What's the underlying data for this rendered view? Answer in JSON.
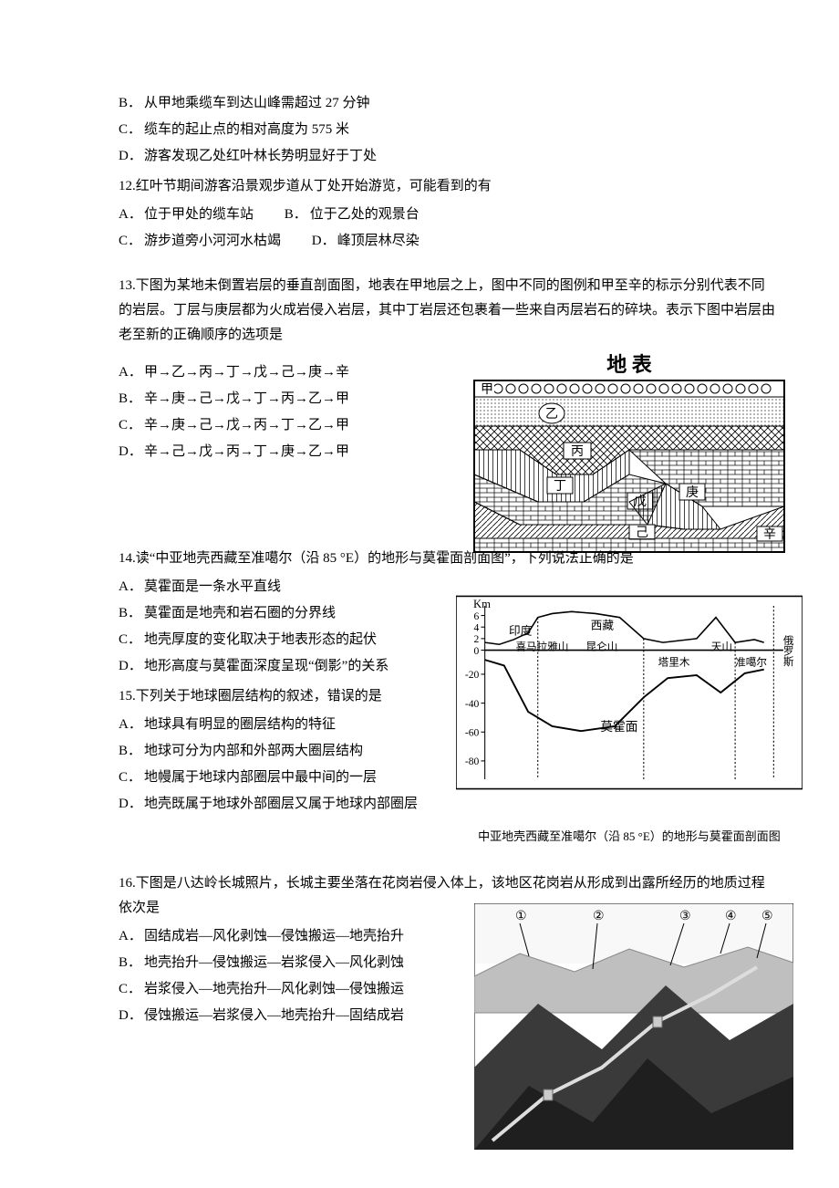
{
  "q11": {
    "B": "从甲地乘缆车到达山峰需超过 27 分钟",
    "C": "缆车的起止点的相对高度为 575 米",
    "D": "游客发现乙处红叶林长势明显好于丁处"
  },
  "q12": {
    "stem": "12.红叶节期间游客沿景观步道从丁处开始游览，可能看到的有",
    "A": "位于甲处的缆车站",
    "B": "位于乙处的观景台",
    "C": "游步道旁小河河水枯竭",
    "D": "峰顶层林尽染"
  },
  "q13": {
    "stem": "13.下图为某地未倒置岩层的垂直剖面图，地表在甲地层之上，图中不同的图例和甲至辛的标示分别代表不同的岩层。丁层与庚层都为火成岩侵入岩层，其中丁岩层还包裹着一些来自丙层岩石的碎块。表示下图中岩层由老至新的正确顺序的选项是",
    "A": "甲→乙→丙→丁→戊→己→庚→辛",
    "B": "辛→庚→己→戊→丁→丙→乙→甲",
    "C": "辛→庚→己→戊→丙→丁→乙→甲",
    "D": "辛→己→戊→丙→丁→庚→乙→甲",
    "fig": {
      "title": "地 表",
      "layers": [
        "甲",
        "乙",
        "丙",
        "丁",
        "戊",
        "己",
        "庚",
        "辛"
      ]
    }
  },
  "q14": {
    "stem": "14.读“中亚地壳西藏至准噶尔（沿 85 °E）的地形与莫霍面剖面图”，下列说法正确的是",
    "A": "莫霍面是一条水平直线",
    "B": "莫霍面是地壳和岩石圈的分界线",
    "C": "地壳厚度的变化取决于地表形态的起伏",
    "D": "地形高度与莫霍面深度呈现“倒影”的关系",
    "fig": {
      "ylabel": "Km",
      "yticks": [
        6,
        4,
        2,
        0,
        -20,
        -40,
        -60,
        -80
      ],
      "top_labels": [
        "印度",
        "西藏",
        "俄罗斯"
      ],
      "mountains": [
        "喜马拉雅山",
        "昆仑山",
        "天山"
      ],
      "basins": [
        "塔里木",
        "准噶尔"
      ],
      "moho": "莫霍面",
      "caption": "中亚地壳西藏至准噶尔（沿 85 °E）的地形与莫霍面剖面图",
      "terrain_points": [
        [
          30,
          48
        ],
        [
          45,
          50
        ],
        [
          60,
          45
        ],
        [
          75,
          38
        ],
        [
          85,
          22
        ],
        [
          100,
          18
        ],
        [
          120,
          16
        ],
        [
          145,
          18
        ],
        [
          170,
          22
        ],
        [
          195,
          44
        ],
        [
          215,
          48
        ],
        [
          250,
          44
        ],
        [
          270,
          22
        ],
        [
          290,
          48
        ],
        [
          310,
          45
        ],
        [
          320,
          48
        ]
      ],
      "moho_points": [
        [
          30,
          66
        ],
        [
          50,
          72
        ],
        [
          75,
          120
        ],
        [
          100,
          135
        ],
        [
          130,
          140
        ],
        [
          165,
          135
        ],
        [
          195,
          105
        ],
        [
          220,
          85
        ],
        [
          250,
          82
        ],
        [
          275,
          100
        ],
        [
          300,
          80
        ],
        [
          320,
          76
        ]
      ]
    }
  },
  "q15": {
    "stem": "15.下列关于地球圈层结构的叙述，错误的是",
    "A": "地球具有明显的圈层结构的特征",
    "B": "地球可分为内部和外部两大圈层结构",
    "C": "地幔属于地球内部圈层中最中间的一层",
    "D": "地壳既属于地球外部圈层又属于地球内部圈层"
  },
  "q16": {
    "stem": "16.下图是八达岭长城照片，长城主要坐落在花岗岩侵入体上，该地区花岗岩从形成到出露所经历的地质过程依次是",
    "A": "固结成岩—风化剥蚀—侵蚀搬运—地壳抬升",
    "B": "地壳抬升—侵蚀搬运—岩浆侵入—风化剥蚀",
    "C": "岩浆侵入—地壳抬升—风化剥蚀—侵蚀搬运",
    "D": "侵蚀搬运—岩浆侵入—地壳抬升—固结成岩",
    "markers": [
      "①",
      "②",
      "③",
      "④",
      "⑤"
    ]
  }
}
